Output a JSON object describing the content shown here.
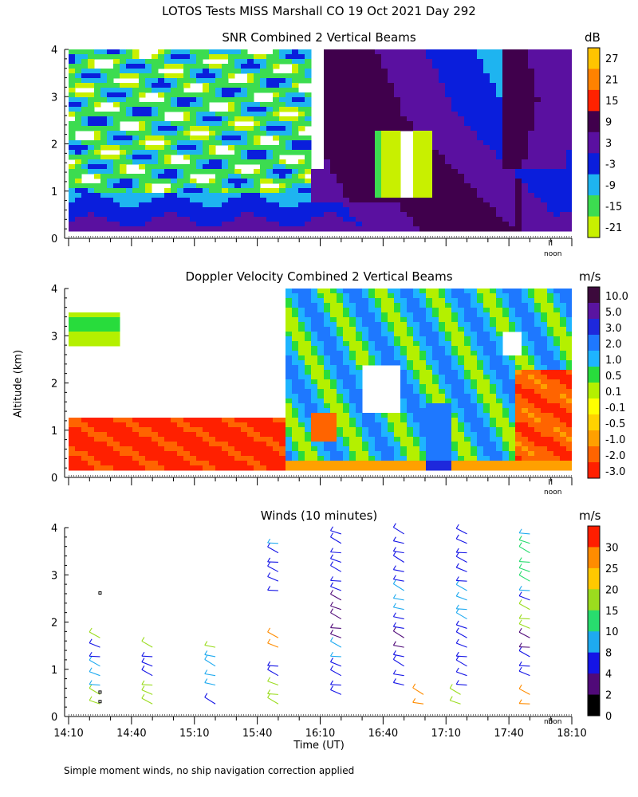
{
  "figure_title": "LOTOS Tests MISS Marshall CO  19 Oct 2021 Day 292",
  "footnote": "Simple moment winds, no ship navigation correction applied",
  "ylabel": "Altitude (km)",
  "xlabel": "Time (UT)",
  "noon_label": "noon",
  "chart_data": [
    {
      "type": "heatmap",
      "title": "SNR Combined 2 Vertical Beams",
      "unit": "dB",
      "ylim": [
        0,
        4
      ],
      "yticks": [
        "0",
        "1",
        "2",
        "3",
        "4"
      ],
      "colorbar_labels": [
        "27",
        "21",
        "15",
        "9",
        "3",
        "-3",
        "-9",
        "-15",
        "-21"
      ],
      "colorbar_colors": [
        "#ffc400",
        "#ff8200",
        "#ff2200",
        "#40004c",
        "#5a10a0",
        "#0a1edc",
        "#1eb4f0",
        "#3cdc50",
        "#c8f000"
      ],
      "legend": "right"
    },
    {
      "type": "heatmap",
      "title": "Doppler Velocity Combined 2 Vertical Beams",
      "unit": "m/s",
      "ylim": [
        0,
        4
      ],
      "yticks": [
        "0",
        "1",
        "2",
        "3",
        "4"
      ],
      "colorbar_labels": [
        "10.0",
        "5.0",
        "3.0",
        "2.0",
        "1.0",
        "0.5",
        "0.1",
        "-0.1",
        "-0.5",
        "-1.0",
        "-2.0",
        "-3.0"
      ],
      "colorbar_colors": [
        "#3c0a3c",
        "#5a14a0",
        "#1e28dc",
        "#1e78ff",
        "#1eb4ff",
        "#28dc3c",
        "#b4f000",
        "#ffff00",
        "#ffd200",
        "#ffa000",
        "#ff6400",
        "#ff2000"
      ],
      "legend": "right"
    },
    {
      "type": "wind_barbs",
      "title": "Winds (10 minutes)",
      "unit": "m/s",
      "ylim": [
        0,
        4
      ],
      "yticks": [
        "0",
        "1",
        "2",
        "3",
        "4"
      ],
      "xticks": [
        "14:10",
        "14:40",
        "15:10",
        "15:40",
        "16:10",
        "16:40",
        "17:10",
        "17:40",
        "18:10"
      ],
      "colorbar_labels": [
        "30",
        "25",
        "20",
        "15",
        "10",
        "8",
        "4",
        "2",
        "0"
      ],
      "colorbar_colors": [
        "#ff1e00",
        "#ff8c00",
        "#ffc800",
        "#9bdc1e",
        "#28dc6e",
        "#1eaaf0",
        "#1414e6",
        "#500a78",
        "#000000"
      ],
      "profiles": [
        {
          "time": "14:25",
          "heights_km": [
            0.3,
            0.5,
            0.7,
            0.9,
            1.1,
            1.3,
            1.5,
            1.7
          ],
          "colors": [
            "#9bdc1e",
            "#9bdc1e",
            "#1eaaf0",
            "#1eaaf0",
            "#1eaaf0",
            "#1414e6",
            "#1414e6",
            "#9bdc1e"
          ]
        },
        {
          "time": "14:50",
          "heights_km": [
            0.3,
            0.5,
            0.7,
            0.9,
            1.1,
            1.3,
            1.5
          ],
          "colors": [
            "#9bdc1e",
            "#9bdc1e",
            "#9bdc1e",
            "#1414e6",
            "#1414e6",
            "#1414e6",
            "#9bdc1e"
          ]
        },
        {
          "time": "15:20",
          "heights_km": [
            0.3,
            0.7,
            0.9,
            1.1,
            1.3,
            1.5
          ],
          "colors": [
            "#1414e6",
            "#1eaaf0",
            "#1eaaf0",
            "#1eaaf0",
            "#1eaaf0",
            "#9bdc1e"
          ]
        },
        {
          "time": "15:50",
          "heights_km": [
            0.3,
            0.5,
            0.7,
            0.9,
            1.1,
            1.5,
            1.7,
            2.7,
            2.9,
            3.1,
            3.3,
            3.5,
            3.7
          ],
          "colors": [
            "#9bdc1e",
            "#9bdc1e",
            "#9bdc1e",
            "#1414e6",
            "#1414e6",
            "#ff8c00",
            "#ff8c00",
            "#1414e6",
            "#1414e6",
            "#1414e6",
            "#1414e6",
            "#1414e6",
            "#1eaaf0"
          ]
        },
        {
          "time": "16:20",
          "heights_km": [
            0.5,
            0.7,
            0.9,
            1.1,
            1.3,
            1.5,
            1.7,
            1.9,
            2.1,
            2.3,
            2.5,
            2.7,
            2.9,
            3.1,
            3.3,
            3.5,
            3.7,
            3.9
          ],
          "colors": [
            "#1414e6",
            "#1414e6",
            "#1414e6",
            "#1414e6",
            "#1eaaf0",
            "#1eaaf0",
            "#500a78",
            "#500a78",
            "#500a78",
            "#500a78",
            "#500a78",
            "#1414e6",
            "#1414e6",
            "#1414e6",
            "#1414e6",
            "#1414e6",
            "#1414e6",
            "#1414e6"
          ]
        },
        {
          "time": "16:50",
          "heights_km": [
            0.7,
            0.9,
            1.1,
            1.3,
            1.5,
            1.7,
            1.9,
            2.1,
            2.3,
            2.5,
            2.7,
            2.9,
            3.1,
            3.3,
            3.5,
            3.7,
            3.9
          ],
          "colors": [
            "#1414e6",
            "#1414e6",
            "#1414e6",
            "#1414e6",
            "#500a78",
            "#500a78",
            "#1414e6",
            "#1414e6",
            "#1eaaf0",
            "#1eaaf0",
            "#1eaaf0",
            "#1414e6",
            "#1414e6",
            "#1414e6",
            "#1414e6",
            "#1414e6",
            "#1414e6"
          ]
        },
        {
          "time": "17:20",
          "heights_km": [
            0.7,
            0.9,
            1.1,
            1.3,
            1.5,
            1.7,
            1.9,
            2.1,
            2.3,
            2.5,
            2.7,
            2.9,
            3.1,
            3.3,
            3.5,
            3.7,
            3.9
          ],
          "colors": [
            "#1414e6",
            "#1414e6",
            "#1414e6",
            "#1414e6",
            "#1414e6",
            "#1414e6",
            "#1414e6",
            "#1eaaf0",
            "#1eaaf0",
            "#1eaaf0",
            "#1eaaf0",
            "#1414e6",
            "#1414e6",
            "#1414e6",
            "#1414e6",
            "#1414e6",
            "#1414e6"
          ]
        },
        {
          "time": "17:50",
          "heights_km": [
            0.3,
            0.5,
            0.9,
            1.1,
            1.3,
            1.5,
            1.7,
            1.9,
            2.1,
            2.3,
            2.5,
            2.7,
            2.9,
            3.1,
            3.3,
            3.5,
            3.7,
            3.9
          ],
          "colors": [
            "#ff8c00",
            "#ff8c00",
            "#1414e6",
            "#1414e6",
            "#1414e6",
            "#500a78",
            "#500a78",
            "#9bdc1e",
            "#9bdc1e",
            "#9bdc1e",
            "#1414e6",
            "#1eaaf0",
            "#28dc6e",
            "#28dc6e",
            "#28dc6e",
            "#28dc6e",
            "#28dc6e",
            "#1eaaf0"
          ]
        },
        {
          "time": "17:10",
          "heights_km": [
            0.3,
            0.5
          ],
          "colors": [
            "#ff8c00",
            "#ff8c00"
          ]
        },
        {
          "time": "17:10",
          "heights_km": [
            0.3,
            0.5
          ],
          "colors": [
            "#9bdc1e",
            "#9bdc1e"
          ]
        }
      ]
    }
  ]
}
